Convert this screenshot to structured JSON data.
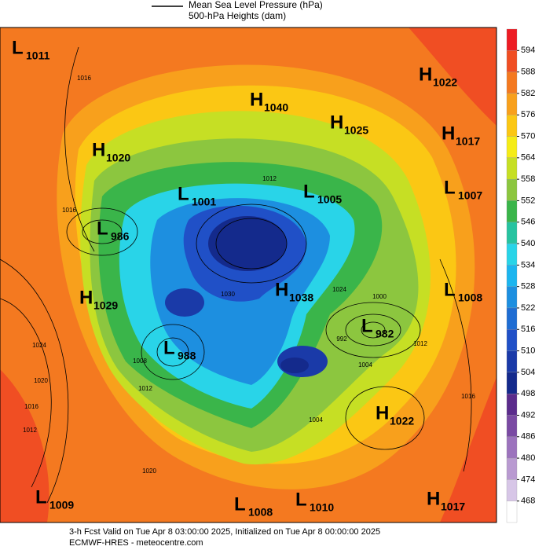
{
  "header": {
    "legend": [
      "Mean Sea Level Pressure (hPa)",
      "500-hPa Heights (dam)"
    ]
  },
  "colorbar": {
    "ticks": [
      594,
      588,
      582,
      576,
      570,
      564,
      558,
      552,
      546,
      540,
      534,
      528,
      522,
      516,
      510,
      504,
      498,
      492,
      486,
      480,
      474,
      468
    ],
    "colors": [
      "#ed1c24",
      "#f04e23",
      "#f47920",
      "#f8a01c",
      "#fbc714",
      "#f5ec17",
      "#c6df24",
      "#8cc63f",
      "#3ab54a",
      "#27c3a0",
      "#29d4e8",
      "#1cb5ef",
      "#1d8fe0",
      "#1f6dd3",
      "#2050c7",
      "#1a3aa8",
      "#142a8c",
      "#5b2c8c",
      "#7a4aa3",
      "#9c73bd",
      "#b99ad1",
      "#d7c6e7",
      "#ffffff"
    ]
  },
  "pressure_systems": [
    {
      "type": "L",
      "value": 1011
    },
    {
      "type": "H",
      "value": 1022
    },
    {
      "type": "H",
      "value": 1040
    },
    {
      "type": "H",
      "value": 1025
    },
    {
      "type": "H",
      "value": 1017
    },
    {
      "type": "H",
      "value": 1020
    },
    {
      "type": "L",
      "value": 1001
    },
    {
      "type": "L",
      "value": 1005
    },
    {
      "type": "L",
      "value": 1007
    },
    {
      "type": "L",
      "value": 986
    },
    {
      "type": "H",
      "value": 1029
    },
    {
      "type": "H",
      "value": 1038
    },
    {
      "type": "L",
      "value": 1008
    },
    {
      "type": "L",
      "value": 982
    },
    {
      "type": "L",
      "value": 988
    },
    {
      "type": "H",
      "value": 1022
    },
    {
      "type": "L",
      "value": 1009
    },
    {
      "type": "L",
      "value": 1008
    },
    {
      "type": "L",
      "value": 1010
    },
    {
      "type": "H",
      "value": 1017
    }
  ],
  "contour_labels": [
    1016,
    1016,
    1024,
    1020,
    1016,
    1012,
    1020,
    1008,
    1012,
    1000,
    1012,
    992,
    1004,
    1004,
    1016,
    1012,
    1024,
    1030
  ],
  "footer": [
    "3-h Fcst Valid on Tue Apr  8 03:00:00 2025, Initialized on Tue Apr  8 00:00:00 2025",
    "ECMWF-HRES  - meteocentre.com"
  ]
}
